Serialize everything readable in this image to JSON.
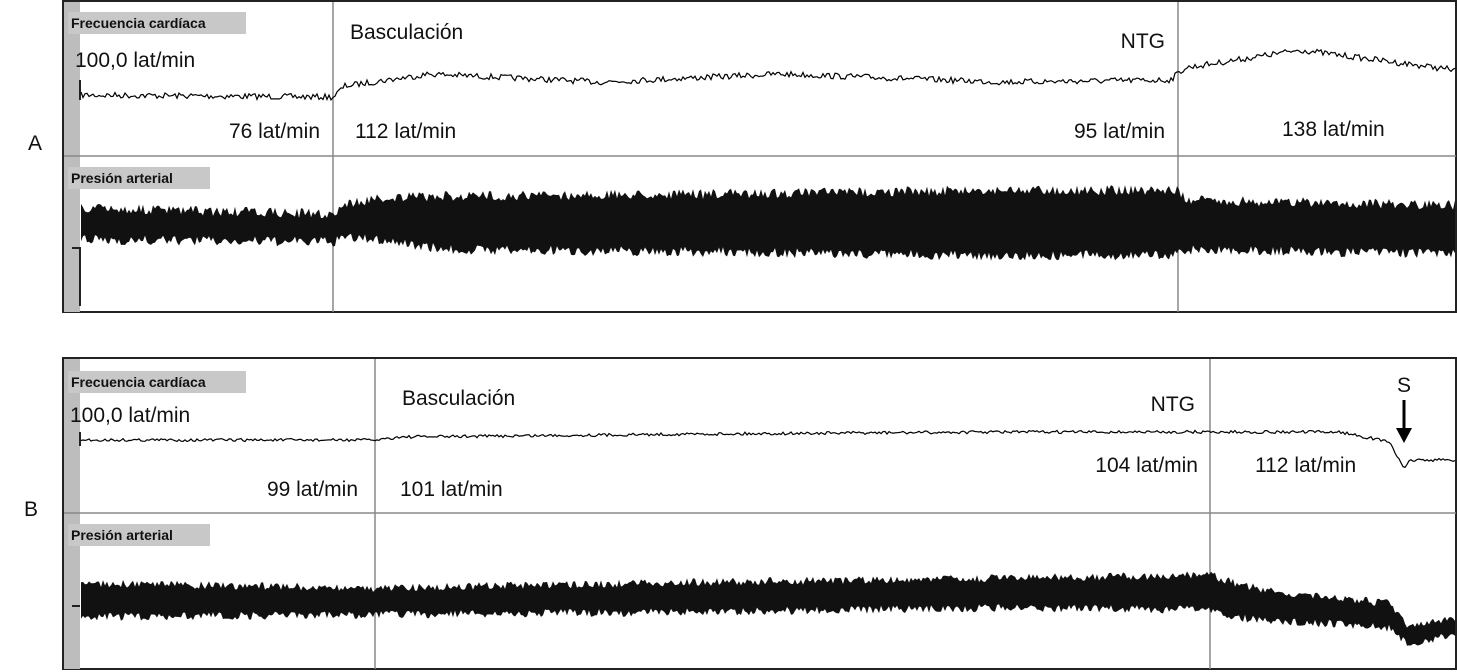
{
  "panels": [
    {
      "label": "A",
      "hr_title": "Frecuencia cardíaca",
      "hr_scale": "100,0 lat/min",
      "bp_title": "Presión arterial",
      "events": [
        "Basculación",
        "NTG"
      ],
      "rates": [
        "76 lat/min",
        "112 lat/min",
        "95 lat/min",
        "138 lat/min"
      ]
    },
    {
      "label": "B",
      "hr_title": "Frecuencia cardíaca",
      "hr_scale": "100,0 lat/min",
      "bp_title": "Presión arterial",
      "events": [
        "Basculación",
        "NTG"
      ],
      "rates": [
        "99 lat/min",
        "101 lat/min",
        "104 lat/min",
        "112 lat/min"
      ],
      "marker": "S"
    }
  ]
}
